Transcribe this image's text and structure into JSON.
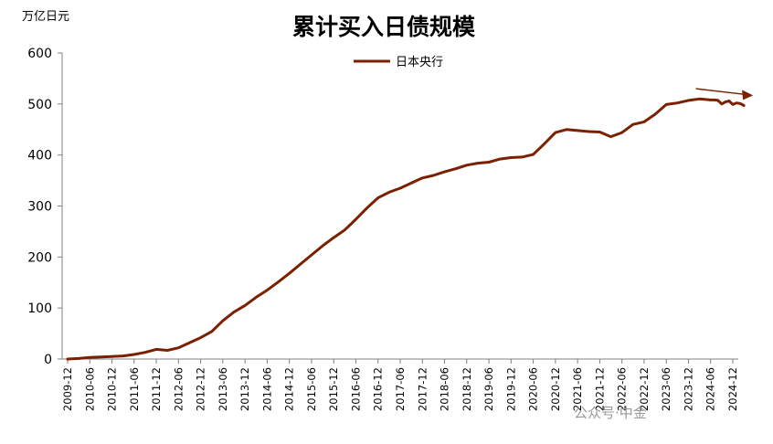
{
  "chart_data": {
    "type": "line",
    "title": "累计买入日债规模",
    "ylabel": "万亿日元",
    "xlabel": "",
    "ylim": [
      0,
      600
    ],
    "yticks": [
      0,
      100,
      200,
      300,
      400,
      500,
      600
    ],
    "grid": false,
    "legend_position": "top-center",
    "line_color": "#7B2000",
    "watermark": "公众号·中金",
    "xtick_labels": [
      "2009-12",
      "2010-06",
      "2010-12",
      "2011-06",
      "2011-12",
      "2012-06",
      "2012-12",
      "2013-06",
      "2013-12",
      "2014-06",
      "2014-12",
      "2015-06",
      "2015-12",
      "2016-06",
      "2016-12",
      "2017-06",
      "2017-12",
      "2018-06",
      "2018-12",
      "2019-06",
      "2019-12",
      "2020-06",
      "2020-12",
      "2021-06",
      "2021-12",
      "2022-06",
      "2022-12",
      "2023-06",
      "2023-12",
      "2024-06",
      "2024-12"
    ],
    "series": [
      {
        "name": "日本央行",
        "points": [
          [
            "2009-12",
            0
          ],
          [
            "2010-03",
            1
          ],
          [
            "2010-06",
            3
          ],
          [
            "2010-09",
            4
          ],
          [
            "2010-12",
            5
          ],
          [
            "2011-03",
            6
          ],
          [
            "2011-06",
            9
          ],
          [
            "2011-09",
            13
          ],
          [
            "2011-12",
            19
          ],
          [
            "2012-03",
            17
          ],
          [
            "2012-06",
            22
          ],
          [
            "2012-09",
            32
          ],
          [
            "2012-12",
            42
          ],
          [
            "2013-03",
            54
          ],
          [
            "2013-06",
            75
          ],
          [
            "2013-09",
            92
          ],
          [
            "2013-12",
            105
          ],
          [
            "2014-03",
            121
          ],
          [
            "2014-06",
            135
          ],
          [
            "2014-09",
            151
          ],
          [
            "2014-12",
            168
          ],
          [
            "2015-03",
            186
          ],
          [
            "2015-06",
            204
          ],
          [
            "2015-09",
            222
          ],
          [
            "2015-12",
            238
          ],
          [
            "2016-03",
            253
          ],
          [
            "2016-06",
            274
          ],
          [
            "2016-09",
            296
          ],
          [
            "2016-12",
            316
          ],
          [
            "2017-03",
            327
          ],
          [
            "2017-06",
            335
          ],
          [
            "2017-09",
            345
          ],
          [
            "2017-12",
            355
          ],
          [
            "2018-03",
            360
          ],
          [
            "2018-06",
            367
          ],
          [
            "2018-09",
            373
          ],
          [
            "2018-12",
            380
          ],
          [
            "2019-03",
            384
          ],
          [
            "2019-06",
            386
          ],
          [
            "2019-09",
            392
          ],
          [
            "2019-12",
            395
          ],
          [
            "2020-03",
            396
          ],
          [
            "2020-06",
            401
          ],
          [
            "2020-09",
            422
          ],
          [
            "2020-12",
            444
          ],
          [
            "2021-03",
            450
          ],
          [
            "2021-06",
            448
          ],
          [
            "2021-09",
            446
          ],
          [
            "2021-12",
            445
          ],
          [
            "2022-03",
            436
          ],
          [
            "2022-06",
            444
          ],
          [
            "2022-09",
            460
          ],
          [
            "2022-12",
            465
          ],
          [
            "2023-03",
            480
          ],
          [
            "2023-06",
            499
          ],
          [
            "2023-09",
            502
          ],
          [
            "2023-12",
            507
          ],
          [
            "2024-03",
            510
          ],
          [
            "2024-06",
            508
          ],
          [
            "2024-07",
            508
          ],
          [
            "2024-08",
            507
          ],
          [
            "2024-09",
            500
          ],
          [
            "2024-10",
            504
          ],
          [
            "2024-11",
            506
          ],
          [
            "2024-12",
            499
          ],
          [
            "2025-01",
            502
          ],
          [
            "2025-02",
            501
          ],
          [
            "2025-03",
            497
          ]
        ]
      }
    ],
    "annotations": [
      {
        "type": "arrow",
        "from": [
          "2024-02",
          530
        ],
        "to": [
          "2025-03",
          517
        ]
      }
    ]
  }
}
